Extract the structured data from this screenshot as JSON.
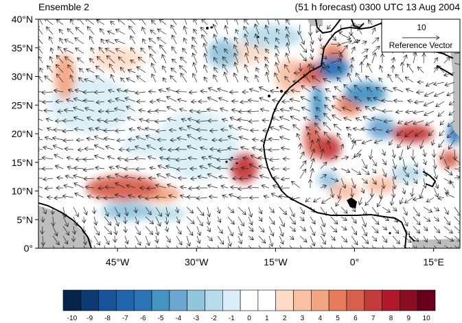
{
  "header": {
    "title_left": "Ensemble 2",
    "title_right": "(51 h forecast) 0300 UTC 13 Aug 2004"
  },
  "axes": {
    "x_ticks": [
      {
        "lon": -45,
        "label": "45°W"
      },
      {
        "lon": -30,
        "label": "30°W"
      },
      {
        "lon": -15,
        "label": "15°W"
      },
      {
        "lon": 0,
        "label": "0°"
      },
      {
        "lon": 15,
        "label": "15°E"
      }
    ],
    "y_ticks": [
      {
        "lat": 0,
        "label": "0°"
      },
      {
        "lat": 5,
        "label": "5°N"
      },
      {
        "lat": 10,
        "label": "10°N"
      },
      {
        "lat": 15,
        "label": "15°N"
      },
      {
        "lat": 20,
        "label": "20°N"
      },
      {
        "lat": 25,
        "label": "25°N"
      },
      {
        "lat": 30,
        "label": "30°N"
      },
      {
        "lat": 35,
        "label": "35°N"
      },
      {
        "lat": 40,
        "label": "40°N"
      }
    ],
    "lon_range": [
      -60,
      20
    ],
    "lat_range": [
      0,
      40
    ]
  },
  "reference_vector": {
    "magnitude": "10",
    "label": "Reference Vector"
  },
  "colorbar": {
    "labels": [
      "-10",
      "-9",
      "-8",
      "-7",
      "-6",
      "-5",
      "-4",
      "-3",
      "-2",
      "-1",
      "0",
      "1",
      "2",
      "3",
      "4",
      "5",
      "6",
      "7",
      "8",
      "9",
      "10"
    ],
    "colors": [
      "#08244a",
      "#0c3a73",
      "#17529a",
      "#2166ac",
      "#2a73b6",
      "#4393c3",
      "#6ba7d2",
      "#92c5de",
      "#b6dbea",
      "#d9eef7",
      "#ffffff",
      "#ffffff",
      "#fddbc7",
      "#f9c0a5",
      "#f4a582",
      "#e77b5b",
      "#d6604d",
      "#c43a3a",
      "#b2182b",
      "#8b0e20",
      "#67001f"
    ],
    "land_fill": "#bdbdbd"
  },
  "anomaly_blobs": [
    {
      "lon": -44,
      "lat": 10.5,
      "rlon": 7,
      "rlat": 2.2,
      "v": 6
    },
    {
      "lon": -37,
      "lat": 9.5,
      "rlon": 4,
      "rlat": 1.5,
      "v": 4
    },
    {
      "lon": -21,
      "lat": 14,
      "rlon": 2.6,
      "rlat": 2.6,
      "v": 7
    },
    {
      "lon": -5,
      "lat": 17.5,
      "rlon": 2.4,
      "rlat": 2.2,
      "v": 7
    },
    {
      "lon": -8,
      "lat": 19,
      "rlon": 1.6,
      "rlat": 3.2,
      "v": 6
    },
    {
      "lon": 11,
      "lat": 20,
      "rlon": 4,
      "rlat": 1.6,
      "v": 7
    },
    {
      "lon": 18,
      "lat": 15.5,
      "rlon": 1.8,
      "rlat": 1.5,
      "v": 6
    },
    {
      "lon": -8,
      "lat": 30.5,
      "rlon": 3,
      "rlat": 2,
      "v": 6
    },
    {
      "lon": -4,
      "lat": 34,
      "rlon": 2.4,
      "rlat": 1.6,
      "v": 5
    },
    {
      "lon": -1,
      "lat": 25,
      "rlon": 2.5,
      "rlat": 1.8,
      "v": 5
    },
    {
      "lon": -55,
      "lat": 30,
      "rlon": 2,
      "rlat": 4,
      "v": 4
    },
    {
      "lon": -45,
      "lat": 33,
      "rlon": 5,
      "rlat": 2,
      "v": 2
    },
    {
      "lon": -2,
      "lat": 10,
      "rlon": 3,
      "rlat": 1.5,
      "v": 3
    },
    {
      "lon": 5,
      "lat": 11,
      "rlon": 3,
      "rlat": 1.5,
      "v": 3
    },
    {
      "lon": -12,
      "lat": 30,
      "rlon": 3,
      "rlat": 3,
      "v": 3
    },
    {
      "lon": -22,
      "lat": 34,
      "rlon": 6,
      "rlat": 2,
      "v": 2
    },
    {
      "lon": -4,
      "lat": 31.5,
      "rlon": 3,
      "rlat": 2,
      "v": -6
    },
    {
      "lon": 2,
      "lat": 27,
      "rlon": 4,
      "rlat": 2,
      "v": -5
    },
    {
      "lon": -7,
      "lat": 25,
      "rlon": 1.3,
      "rlat": 3.5,
      "v": -5
    },
    {
      "lon": 5,
      "lat": 21,
      "rlon": 2.6,
      "rlat": 2,
      "v": -4
    },
    {
      "lon": 19,
      "lat": 20,
      "rlon": 1.3,
      "rlat": 2,
      "v": -6
    },
    {
      "lon": -25,
      "lat": 34,
      "rlon": 3,
      "rlat": 2.5,
      "v": -3
    },
    {
      "lon": -43,
      "lat": 6.5,
      "rlon": 5,
      "rlat": 1.6,
      "v": -3
    },
    {
      "lon": -36,
      "lat": 6,
      "rlon": 4,
      "rlat": 1.2,
      "v": -2
    },
    {
      "lon": -5,
      "lat": 12,
      "rlon": 2,
      "rlat": 1.5,
      "v": -3
    },
    {
      "lon": -50,
      "lat": 25,
      "rlon": 8,
      "rlat": 5,
      "v": -1
    },
    {
      "lon": -30,
      "lat": 18,
      "rlon": 8,
      "rlat": 6,
      "v": -1
    },
    {
      "lon": -16,
      "lat": 37,
      "rlon": 6,
      "rlat": 2,
      "v": -2
    },
    {
      "lon": 10,
      "lat": 13,
      "rlon": 3,
      "rlat": 1.5,
      "v": -2
    },
    {
      "lon": -40,
      "lat": 18,
      "rlon": 4,
      "rlat": 2,
      "v": -1
    }
  ]
}
